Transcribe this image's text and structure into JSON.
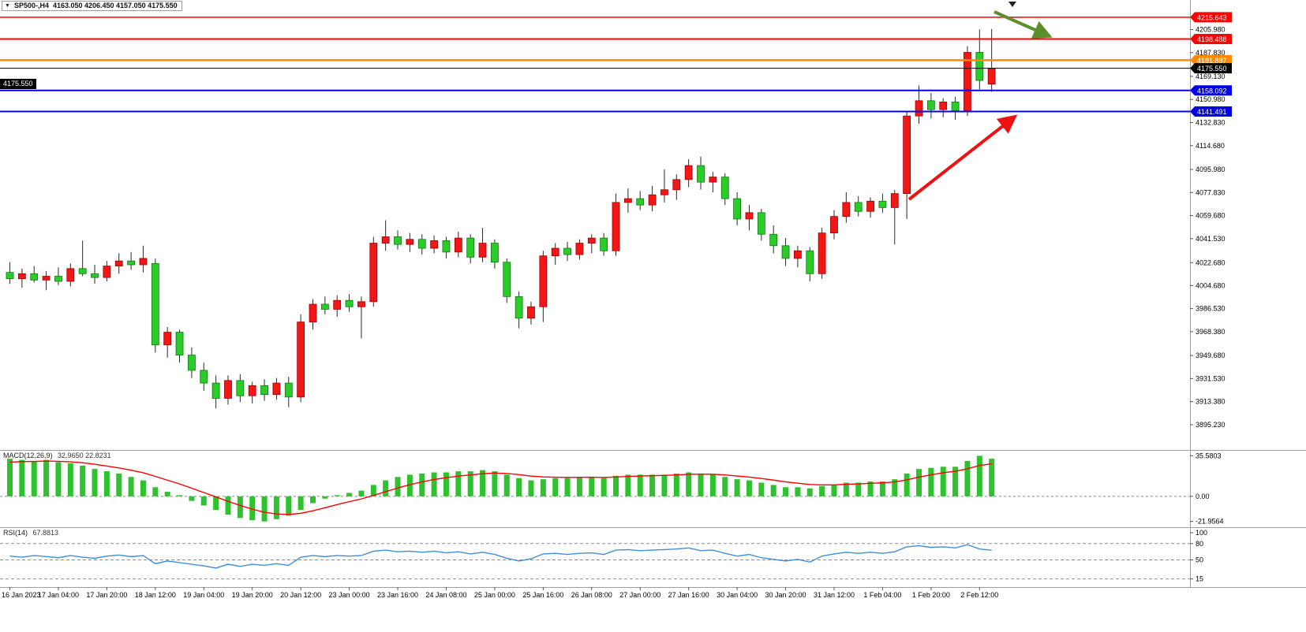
{
  "header": {
    "symbol": "SP500-,H4",
    "ohlc": "4163.050 4206.450 4157.050 4175.550",
    "dropdown_icon": "▼"
  },
  "chart_data": {
    "type": "candlestick",
    "symbol": "SP500",
    "timeframe": "H4",
    "price_ylim": [
      3876,
      4223
    ],
    "current_bar": {
      "open": 4163.05,
      "high": 4206.45,
      "low": 4157.05,
      "close": 4175.55
    },
    "label_every_n_candles": 4,
    "candles": [
      [
        4015,
        4023,
        4006,
        4010
      ],
      [
        4010,
        4018,
        4003,
        4014
      ],
      [
        4014,
        4020,
        4007,
        4009
      ],
      [
        4009,
        4016,
        4001,
        4012
      ],
      [
        4012,
        4019,
        4005,
        4008
      ],
      [
        4008,
        4022,
        4004,
        4018
      ],
      [
        4018,
        4040,
        4012,
        4014
      ],
      [
        4014,
        4021,
        4006,
        4011
      ],
      [
        4011,
        4024,
        4008,
        4020
      ],
      [
        4020,
        4030,
        4014,
        4024
      ],
      [
        4024,
        4031,
        4017,
        4021
      ],
      [
        4021,
        4036,
        4015,
        4026
      ],
      [
        4022,
        4026,
        3952,
        3958
      ],
      [
        3958,
        3972,
        3948,
        3968
      ],
      [
        3968,
        3970,
        3944,
        3950
      ],
      [
        3950,
        3956,
        3932,
        3938
      ],
      [
        3938,
        3944,
        3922,
        3928
      ],
      [
        3928,
        3934,
        3908,
        3916
      ],
      [
        3916,
        3934,
        3911,
        3930
      ],
      [
        3930,
        3935,
        3913,
        3918
      ],
      [
        3918,
        3929,
        3912,
        3926
      ],
      [
        3926,
        3931,
        3914,
        3919
      ],
      [
        3919,
        3932,
        3915,
        3928
      ],
      [
        3928,
        3933,
        3909,
        3917
      ],
      [
        3917,
        3982,
        3913,
        3976
      ],
      [
        3976,
        3994,
        3970,
        3990
      ],
      [
        3990,
        3996,
        3982,
        3986
      ],
      [
        3986,
        3997,
        3980,
        3993
      ],
      [
        3993,
        3998,
        3984,
        3988
      ],
      [
        3988,
        3996,
        3963,
        3992
      ],
      [
        3992,
        4043,
        3988,
        4038
      ],
      [
        4038,
        4056,
        4032,
        4043
      ],
      [
        4043,
        4048,
        4033,
        4037
      ],
      [
        4037,
        4046,
        4031,
        4041
      ],
      [
        4041,
        4045,
        4029,
        4034
      ],
      [
        4034,
        4044,
        4030,
        4040
      ],
      [
        4040,
        4043,
        4026,
        4031
      ],
      [
        4031,
        4047,
        4027,
        4042
      ],
      [
        4042,
        4045,
        4022,
        4027
      ],
      [
        4027,
        4050,
        4023,
        4038
      ],
      [
        4038,
        4041,
        4018,
        4023
      ],
      [
        4023,
        4026,
        3991,
        3996
      ],
      [
        3996,
        4000,
        3971,
        3979
      ],
      [
        3979,
        3992,
        3974,
        3988
      ],
      [
        3988,
        4032,
        3976,
        4028
      ],
      [
        4028,
        4038,
        4021,
        4034
      ],
      [
        4034,
        4039,
        4024,
        4029
      ],
      [
        4029,
        4041,
        4025,
        4038
      ],
      [
        4038,
        4045,
        4030,
        4042
      ],
      [
        4042,
        4046,
        4028,
        4032
      ],
      [
        4032,
        4077,
        4028,
        4070
      ],
      [
        4070,
        4081,
        4062,
        4073
      ],
      [
        4073,
        4079,
        4064,
        4068
      ],
      [
        4068,
        4083,
        4063,
        4076
      ],
      [
        4076,
        4096,
        4070,
        4080
      ],
      [
        4080,
        4092,
        4072,
        4088
      ],
      [
        4088,
        4104,
        4082,
        4099
      ],
      [
        4099,
        4106,
        4080,
        4086
      ],
      [
        4086,
        4094,
        4078,
        4090
      ],
      [
        4090,
        4093,
        4068,
        4073
      ],
      [
        4073,
        4078,
        4052,
        4057
      ],
      [
        4057,
        4068,
        4048,
        4062
      ],
      [
        4062,
        4065,
        4040,
        4045
      ],
      [
        4045,
        4052,
        4030,
        4036
      ],
      [
        4036,
        4042,
        4020,
        4026
      ],
      [
        4026,
        4036,
        4019,
        4032
      ],
      [
        4032,
        4035,
        4008,
        4014
      ],
      [
        4014,
        4050,
        4010,
        4046
      ],
      [
        4046,
        4064,
        4041,
        4059
      ],
      [
        4059,
        4078,
        4054,
        4070
      ],
      [
        4070,
        4075,
        4059,
        4063
      ],
      [
        4063,
        4074,
        4058,
        4071
      ],
      [
        4071,
        4077,
        4062,
        4066
      ],
      [
        4066,
        4080,
        4037,
        4077
      ],
      [
        4077,
        4142,
        4057,
        4138
      ],
      [
        4138,
        4162,
        4132,
        4150
      ],
      [
        4150,
        4156,
        4136,
        4143
      ],
      [
        4143,
        4152,
        4137,
        4149
      ],
      [
        4149,
        4153,
        4135,
        4142
      ],
      [
        4142,
        4193,
        4138,
        4188
      ],
      [
        4188,
        4206,
        4159,
        4166
      ],
      [
        4163.05,
        4206.45,
        4157.05,
        4175.55
      ]
    ],
    "time_labels": [
      "16 Jan 2023",
      "17 Jan 04:00",
      "17 Jan 20:00",
      "18 Jan 12:00",
      "19 Jan 04:00",
      "19 Jan 20:00",
      "20 Jan 12:00",
      "23 Jan 00:00",
      "23 Jan 16:00",
      "24 Jan 08:00",
      "25 Jan 00:00",
      "25 Jan 16:00",
      "26 Jan 08:00",
      "27 Jan 00:00",
      "27 Jan 16:00",
      "30 Jan 04:00",
      "30 Jan 20:00",
      "31 Jan 12:00",
      "1 Feb 04:00",
      "1 Feb 20:00",
      "2 Feb 12:00"
    ],
    "price_ticks": [
      "4205.980",
      "4187.830",
      "4169.130",
      "4150.980",
      "4132.830",
      "4114.680",
      "4095.980",
      "4077.830",
      "4059.680",
      "4041.530",
      "4022.680",
      "4004.680",
      "3986.530",
      "3968.380",
      "3949.680",
      "3931.530",
      "3913.380",
      "3895.230"
    ],
    "hlines": [
      {
        "price": 4215.643,
        "label": "4215.643",
        "color": "#ff0000",
        "width": 1.5
      },
      {
        "price": 4198.488,
        "label": "4198.488",
        "color": "#ff0000",
        "width": 2
      },
      {
        "price": 4181.887,
        "label": "4181.887",
        "color": "#ff8c00",
        "width": 2.5
      },
      {
        "price": 4175.55,
        "label": "4175.550",
        "color": "#000000",
        "width": 1
      },
      {
        "price": 4158.092,
        "label": "4158.092",
        "color": "#0000e6",
        "width": 2
      },
      {
        "price": 4141.491,
        "label": "4141.491",
        "color": "#0000e6",
        "width": 2
      }
    ],
    "left_price_badge": "4175.550",
    "arrows": [
      {
        "name": "green-trend-arrow",
        "color": "#5a8f29",
        "from": [
          1260,
          15
        ],
        "to": [
          1330,
          46
        ]
      },
      {
        "name": "red-trend-arrow",
        "color": "#f01010",
        "from": [
          1152,
          253
        ],
        "to": [
          1286,
          148
        ]
      }
    ],
    "macd": {
      "label": "MACD(12,26,9)",
      "values": "32.9650 22.8231",
      "main_value": 32.965,
      "signal_value": 22.8231,
      "ylim": [
        -25,
        40
      ],
      "hist": [
        33,
        32,
        31,
        32,
        30,
        29,
        27,
        24,
        22,
        20,
        17,
        14,
        8,
        4,
        1,
        -4,
        -8,
        -12,
        -16,
        -19,
        -21,
        -22,
        -20,
        -17,
        -12,
        -6,
        -2,
        1,
        3,
        5,
        10,
        14,
        17,
        19,
        20,
        21,
        21,
        22,
        22,
        23,
        22,
        19,
        16,
        14,
        15,
        16,
        16,
        17,
        17,
        16,
        18,
        19,
        19,
        19,
        19,
        20,
        21,
        20,
        19,
        17,
        15,
        14,
        12,
        10,
        8,
        8,
        7,
        9,
        10,
        12,
        12,
        13,
        13,
        15,
        20,
        24,
        25,
        26,
        26,
        31,
        35.6,
        33
      ],
      "axis": [
        {
          "v": 35.5803,
          "label": "35.5803"
        },
        {
          "v": 0,
          "label": "0.00"
        },
        {
          "v": -21.9564,
          "label": "-21.9564"
        }
      ]
    },
    "rsi": {
      "label": "RSI(14)",
      "value": "67.8813",
      "ylim": [
        0,
        100
      ],
      "levels": [
        80,
        50,
        15
      ],
      "values": [
        57,
        55,
        58,
        56,
        54,
        58,
        55,
        53,
        57,
        59,
        56,
        58,
        43,
        48,
        45,
        42,
        39,
        35,
        42,
        38,
        42,
        40,
        43,
        40,
        55,
        58,
        56,
        58,
        57,
        58,
        66,
        68,
        65,
        66,
        64,
        66,
        63,
        65,
        61,
        64,
        60,
        53,
        48,
        52,
        61,
        62,
        60,
        62,
        63,
        60,
        68,
        69,
        67,
        68,
        69,
        70,
        72,
        67,
        68,
        62,
        57,
        60,
        54,
        51,
        48,
        51,
        46,
        57,
        61,
        64,
        62,
        64,
        62,
        65,
        74,
        76,
        73,
        74,
        72,
        78,
        70,
        67.88
      ],
      "axis": [
        {
          "v": 100,
          "label": "100"
        },
        {
          "v": 80,
          "label": "80"
        },
        {
          "v": 50,
          "label": "50"
        },
        {
          "v": 15,
          "label": "15"
        }
      ]
    },
    "colors": {
      "bull": "#f21616",
      "bull_edge": "#a00000",
      "bear": "#29cc29",
      "bear_edge": "#0c7a0c",
      "wick": "#2a2a2a",
      "macd_hist": "#2ec22e",
      "macd_signal": "#ff0000",
      "rsi_line": "#3e8ede",
      "axis_text": "#000000",
      "separator": "#9aa0a6"
    }
  }
}
